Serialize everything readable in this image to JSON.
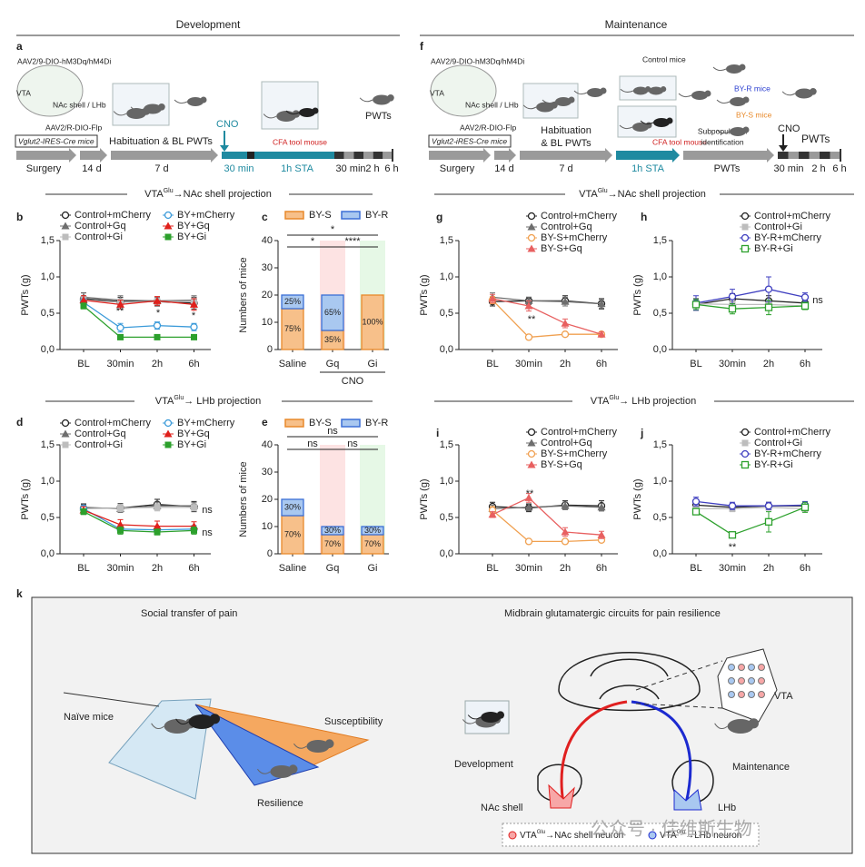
{
  "headers": [
    "Development",
    "Maintenance"
  ],
  "sections": [
    {
      "pre": "VTA",
      "sup": "Glu",
      "post": "→NAc shell projection"
    },
    {
      "pre": "VTA",
      "sup": "Glu",
      "post": "→NAc shell projection"
    },
    {
      "pre": "VTA",
      "sup": "Glu",
      "post": "→ LHb projection"
    },
    {
      "pre": "VTA",
      "sup": "Glu",
      "post": "→ LHb projection"
    }
  ],
  "schematic_a": {
    "letter": "a",
    "virus1": "AAV2/9-DIO-hM3Dq/hM4Di",
    "vta": "VTA",
    "target": "NAc shell / LHb",
    "virus2": "AAV2/R-DIO-Flp",
    "mice": "Vglut2-IRES-Cre mice",
    "habituation": "Habituation & BL PWTs",
    "cno": "CNO",
    "tool": "CFA tool mouse",
    "pwts": "PWTs",
    "timeline": [
      "Surgery",
      "14 d",
      "7 d",
      "30 min",
      "1h STA",
      "30 min",
      "2 h",
      "6 h"
    ]
  },
  "schematic_f": {
    "letter": "f",
    "virus1": "AAV2/9-DIO-hM3Dq/hM4Di",
    "vta": "VTA",
    "target": "NAc shell / LHb",
    "virus2": "AAV2/R-DIO-Flp",
    "mice": "Vglut2-iRES-Cre mice",
    "habituation": [
      "Habituation",
      "& BL PWTs"
    ],
    "control": "Control mice",
    "tool": "CFA tool mouse",
    "subpopulation": [
      "Subpopulation",
      "identification"
    ],
    "resilient": "BY-R mice",
    "susceptible": "BY-S mice",
    "cno": "CNO",
    "pwts": "PWTs",
    "timeline": [
      "Surgery",
      "14 d",
      "7 d",
      "1h STA",
      "PWTs",
      "30 min",
      "2 h",
      "6 h"
    ]
  },
  "schematic_k": {
    "letter": "k",
    "left_title": "Social transfer of pain",
    "right_title": "Midbrain glutamatergic circuits for pain resilience",
    "naive": "Naïve mice",
    "susceptibility": "Susceptibility",
    "resilience": "Resilience",
    "vta": "VTA",
    "development": "Development",
    "maintenance": "Maintenance",
    "nac": "NAc shell",
    "lhb": "LHb",
    "legend": [
      {
        "pre": "VTA",
        "sup": "Glu",
        "post": "→NAc shell neuron"
      },
      {
        "pre": "VTA",
        "sup": "Glu",
        "post": "→LHb neuron"
      }
    ],
    "watermark": "公众号 · 佳维斯生物"
  },
  "chart_data": [
    {
      "panel": "b",
      "type": "line",
      "ylabel": "PWTs (g)",
      "categories": [
        "BL",
        "30min",
        "2h",
        "6h"
      ],
      "ylim": [
        0,
        1.5
      ],
      "yticks": [
        {
          "value": 0,
          "label": "0,0"
        },
        {
          "value": 0.5,
          "label": "0,5"
        },
        {
          "value": 1,
          "label": "1,0"
        },
        {
          "value": 1.5,
          "label": "1,5"
        }
      ],
      "series": [
        {
          "name": "Control+mCherry",
          "color": "#222222",
          "marker": "circle-open",
          "values": [
            0.7,
            0.66,
            0.66,
            0.64
          ],
          "errors": [
            0.08,
            0.06,
            0.06,
            0.08
          ]
        },
        {
          "name": "Control+Gq",
          "color": "#6e6e6e",
          "marker": "triangle",
          "values": [
            0.72,
            0.68,
            0.67,
            0.68
          ],
          "errors": [
            0.06,
            0.06,
            0.05,
            0.06
          ]
        },
        {
          "name": "Control+Gi",
          "color": "#bdbdbd",
          "marker": "square",
          "values": [
            0.68,
            0.65,
            0.66,
            0.66
          ],
          "errors": [
            0.05,
            0.05,
            0.05,
            0.05
          ]
        },
        {
          "name": "BY+mCherry",
          "color": "#3a9ad9",
          "marker": "circle-open",
          "values": [
            0.65,
            0.3,
            0.33,
            0.31
          ],
          "errors": [
            0.05,
            0.06,
            0.05,
            0.05
          ]
        },
        {
          "name": "BY+Gq",
          "color": "#e0201b",
          "marker": "triangle",
          "values": [
            0.68,
            0.62,
            0.67,
            0.62
          ],
          "errors": [
            0.06,
            0.06,
            0.06,
            0.08
          ]
        },
        {
          "name": "BY+Gi",
          "color": "#2ca02c",
          "marker": "square",
          "values": [
            0.6,
            0.17,
            0.17,
            0.17
          ],
          "errors": [
            0.04,
            0.03,
            0.02,
            0.02
          ]
        }
      ],
      "annotations": [
        "**",
        "*",
        "*"
      ]
    },
    {
      "panel": "c",
      "type": "stacked_bar",
      "ylabel": "Numbers of mice",
      "categories": [
        "Saline",
        "Gq",
        "Gi"
      ],
      "group_label": "CNO",
      "category_backgrounds": [
        null,
        "#fde3e3",
        "#e6f8e6"
      ],
      "ylim": [
        0,
        40
      ],
      "yticks": [
        0,
        10,
        20,
        30,
        40
      ],
      "series": [
        {
          "name": "BY-S",
          "color": "#f7c08a",
          "edge": "#e8892a",
          "values": [
            15,
            7,
            20
          ],
          "segment_labels": [
            "75%",
            "35%",
            "100%"
          ]
        },
        {
          "name": "BY-R",
          "color": "#a9c8f0",
          "edge": "#3b6fd6",
          "values": [
            5,
            13,
            0
          ],
          "segment_labels": [
            "25%",
            "65%",
            null
          ]
        }
      ],
      "annotations": [
        "*",
        "****",
        "*"
      ]
    },
    {
      "panel": "d",
      "type": "line",
      "ylabel": "PWTs (g)",
      "categories": [
        "BL",
        "30min",
        "2h",
        "6h"
      ],
      "ylim": [
        0,
        1.5
      ],
      "yticks": [
        {
          "value": 0,
          "label": "0,0"
        },
        {
          "value": 0.5,
          "label": "0,5"
        },
        {
          "value": 1,
          "label": "1,0"
        },
        {
          "value": 1.5,
          "label": "1,5"
        }
      ],
      "series": [
        {
          "name": "Control+mCherry",
          "color": "#222222",
          "marker": "circle-open",
          "values": [
            0.63,
            0.63,
            0.68,
            0.65
          ],
          "errors": [
            0.05,
            0.06,
            0.07,
            0.07
          ]
        },
        {
          "name": "Control+Gq",
          "color": "#6e6e6e",
          "marker": "triangle",
          "values": [
            0.64,
            0.62,
            0.66,
            0.66
          ],
          "errors": [
            0.05,
            0.05,
            0.05,
            0.05
          ]
        },
        {
          "name": "Control+Gi",
          "color": "#bdbdbd",
          "marker": "square",
          "values": [
            0.62,
            0.63,
            0.64,
            0.64
          ],
          "errors": [
            0.04,
            0.05,
            0.05,
            0.05
          ]
        },
        {
          "name": "BY+mCherry",
          "color": "#3a9ad9",
          "marker": "circle-open",
          "values": [
            0.62,
            0.34,
            0.33,
            0.34
          ],
          "errors": [
            0.05,
            0.05,
            0.05,
            0.05
          ]
        },
        {
          "name": "BY+Gq",
          "color": "#e0201b",
          "marker": "triangle",
          "values": [
            0.6,
            0.4,
            0.38,
            0.38
          ],
          "errors": [
            0.05,
            0.07,
            0.07,
            0.06
          ]
        },
        {
          "name": "BY+Gi",
          "color": "#2ca02c",
          "marker": "square",
          "values": [
            0.58,
            0.32,
            0.3,
            0.32
          ],
          "errors": [
            0.04,
            0.05,
            0.04,
            0.05
          ]
        }
      ],
      "annotations": [
        "ns",
        "ns"
      ]
    },
    {
      "panel": "e",
      "type": "stacked_bar",
      "ylabel": "Numbers of mice",
      "categories": [
        "Saline",
        "Gq",
        "Gi"
      ],
      "category_backgrounds": [
        null,
        "#fde3e3",
        "#e6f8e6"
      ],
      "ylim": [
        0,
        40
      ],
      "yticks": [
        0,
        10,
        20,
        30,
        40
      ],
      "series": [
        {
          "name": "BY-S",
          "color": "#f7c08a",
          "edge": "#e8892a",
          "values": [
            14,
            7,
            7
          ],
          "segment_labels": [
            "70%",
            "70%",
            "70%"
          ]
        },
        {
          "name": "BY-R",
          "color": "#a9c8f0",
          "edge": "#3b6fd6",
          "values": [
            6,
            3,
            3
          ],
          "segment_labels": [
            "30%",
            "30%",
            "30%"
          ]
        }
      ],
      "annotations": [
        "ns",
        "ns",
        "ns"
      ]
    },
    {
      "panel": "g",
      "type": "line",
      "ylabel": "PWTs (g)",
      "categories": [
        "BL",
        "30min",
        "2h",
        "6h"
      ],
      "ylim": [
        0,
        1.5
      ],
      "yticks": [
        {
          "value": 0,
          "label": "0,0"
        },
        {
          "value": 0.5,
          "label": "0,5"
        },
        {
          "value": 1,
          "label": "1,0"
        },
        {
          "value": 1.5,
          "label": "1,5"
        }
      ],
      "series": [
        {
          "name": "Control+mCherry",
          "color": "#222222",
          "marker": "circle-open",
          "values": [
            0.66,
            0.67,
            0.67,
            0.63
          ],
          "errors": [
            0.06,
            0.05,
            0.07,
            0.07
          ]
        },
        {
          "name": "Control+Gq",
          "color": "#6e6e6e",
          "marker": "triangle",
          "values": [
            0.72,
            0.67,
            0.66,
            0.63
          ],
          "errors": [
            0.06,
            0.05,
            0.06,
            0.06
          ]
        },
        {
          "name": "BY-S+mCherry",
          "color": "#f0a050",
          "marker": "circle-open",
          "values": [
            0.68,
            0.17,
            0.21,
            0.21
          ],
          "errors": [
            0.05,
            0.02,
            0.02,
            0.02
          ]
        },
        {
          "name": "BY-S+Gq",
          "color": "#e86060",
          "marker": "triangle",
          "values": [
            0.7,
            0.6,
            0.36,
            0.21
          ],
          "errors": [
            0.06,
            0.07,
            0.06,
            0.03
          ]
        }
      ],
      "annotations": [
        "**"
      ]
    },
    {
      "panel": "h",
      "type": "line",
      "ylabel": "PWTs (g)",
      "categories": [
        "BL",
        "30min",
        "2h",
        "6h"
      ],
      "ylim": [
        0,
        1.5
      ],
      "yticks": [
        {
          "value": 0,
          "label": "0,0"
        },
        {
          "value": 0.5,
          "label": "0,5"
        },
        {
          "value": 1,
          "label": "1,0"
        },
        {
          "value": 1.5,
          "label": "1,5"
        }
      ],
      "series": [
        {
          "name": "Control+mCherry",
          "color": "#222222",
          "marker": "circle-open",
          "values": [
            0.62,
            0.7,
            0.67,
            0.64
          ],
          "errors": [
            0.08,
            0.07,
            0.07,
            0.06
          ]
        },
        {
          "name": "Control+Gi",
          "color": "#bdbdbd",
          "marker": "square",
          "values": [
            0.63,
            0.62,
            0.62,
            0.6
          ],
          "errors": [
            0.06,
            0.05,
            0.05,
            0.05
          ]
        },
        {
          "name": "BY-R+mCherry",
          "color": "#4040c0",
          "marker": "circle-open",
          "values": [
            0.64,
            0.73,
            0.83,
            0.72
          ],
          "errors": [
            0.1,
            0.1,
            0.17,
            0.06
          ]
        },
        {
          "name": "BY-R+Gi",
          "color": "#2ca02c",
          "marker": "square-open",
          "values": [
            0.62,
            0.56,
            0.58,
            0.6
          ],
          "errors": [
            0.07,
            0.07,
            0.1,
            0.05
          ]
        }
      ],
      "annotations": [
        "ns"
      ]
    },
    {
      "panel": "i",
      "type": "line",
      "ylabel": "PWTs (g)",
      "categories": [
        "BL",
        "30min",
        "2h",
        "6h"
      ],
      "ylim": [
        0,
        1.5
      ],
      "yticks": [
        {
          "value": 0,
          "label": "0,0"
        },
        {
          "value": 0.5,
          "label": "0,5"
        },
        {
          "value": 1,
          "label": "1,0"
        },
        {
          "value": 1.5,
          "label": "1,5"
        }
      ],
      "series": [
        {
          "name": "Control+mCherry",
          "color": "#222222",
          "marker": "circle-open",
          "values": [
            0.65,
            0.63,
            0.67,
            0.66
          ],
          "errors": [
            0.06,
            0.05,
            0.06,
            0.07
          ]
        },
        {
          "name": "Control+Gq",
          "color": "#6e6e6e",
          "marker": "triangle",
          "values": [
            0.62,
            0.64,
            0.66,
            0.64
          ],
          "errors": [
            0.05,
            0.05,
            0.05,
            0.05
          ]
        },
        {
          "name": "BY-S+mCherry",
          "color": "#f0a050",
          "marker": "circle-open",
          "values": [
            0.6,
            0.17,
            0.17,
            0.19
          ],
          "errors": [
            0.05,
            0.01,
            0.01,
            0.02
          ]
        },
        {
          "name": "BY-S+Gq",
          "color": "#e86060",
          "marker": "triangle",
          "values": [
            0.54,
            0.77,
            0.3,
            0.26
          ],
          "errors": [
            0.04,
            0.06,
            0.06,
            0.05
          ]
        }
      ],
      "annotations": [
        "**"
      ]
    },
    {
      "panel": "j",
      "type": "line",
      "ylabel": "PWTs (g)",
      "categories": [
        "BL",
        "30min",
        "2h",
        "6h"
      ],
      "ylim": [
        0,
        1.5
      ],
      "yticks": [
        {
          "value": 0,
          "label": "0,0"
        },
        {
          "value": 0.5,
          "label": "0,5"
        },
        {
          "value": 1,
          "label": "1,0"
        },
        {
          "value": 1.5,
          "label": "1,5"
        }
      ],
      "series": [
        {
          "name": "Control+mCherry",
          "color": "#222222",
          "marker": "circle-open",
          "values": [
            0.67,
            0.64,
            0.66,
            0.66
          ],
          "errors": [
            0.05,
            0.05,
            0.05,
            0.05
          ]
        },
        {
          "name": "Control+Gi",
          "color": "#bdbdbd",
          "marker": "square",
          "values": [
            0.62,
            0.62,
            0.64,
            0.62
          ],
          "errors": [
            0.04,
            0.04,
            0.04,
            0.04
          ]
        },
        {
          "name": "BY-R+mCherry",
          "color": "#4040c0",
          "marker": "circle-open",
          "values": [
            0.72,
            0.66,
            0.66,
            0.67
          ],
          "errors": [
            0.06,
            0.05,
            0.05,
            0.05
          ]
        },
        {
          "name": "BY-R+Gi",
          "color": "#2ca02c",
          "marker": "square-open",
          "values": [
            0.58,
            0.26,
            0.44,
            0.64
          ],
          "errors": [
            0.04,
            0.03,
            0.14,
            0.07
          ]
        }
      ],
      "annotations": [
        "**"
      ]
    }
  ]
}
